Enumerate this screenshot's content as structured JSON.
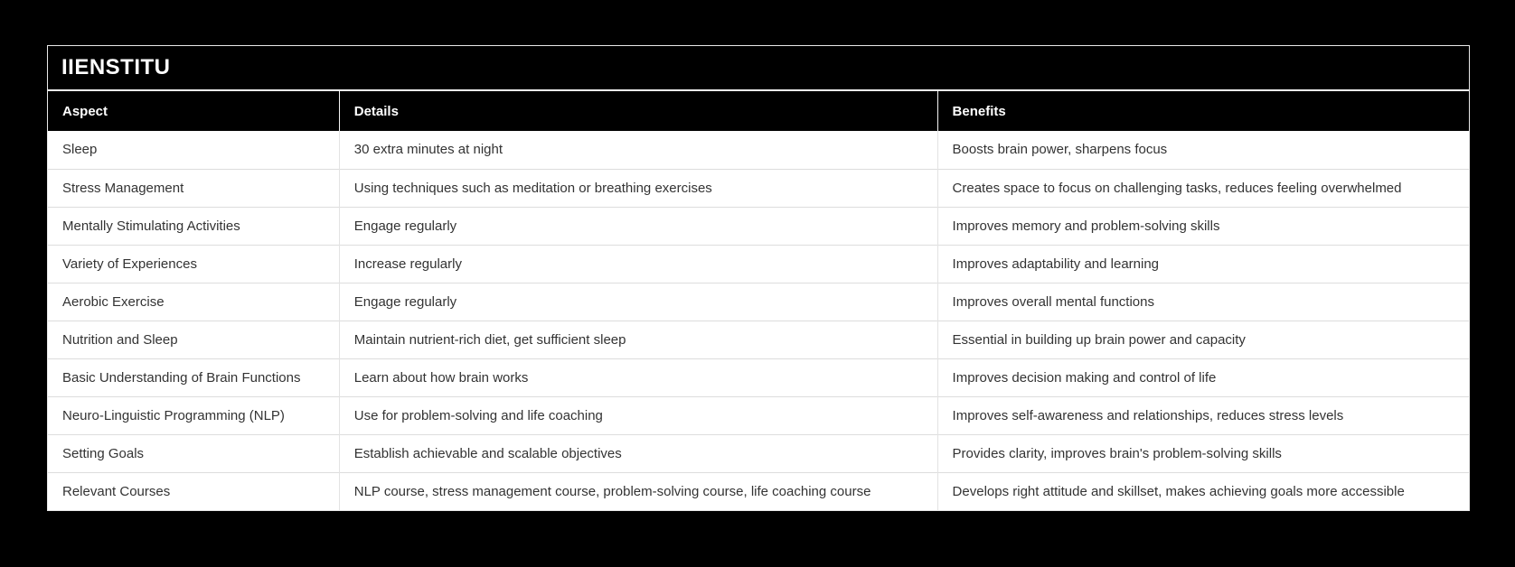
{
  "page": {
    "background_color": "#000000",
    "accent_text_color": "#ffffff",
    "cell_text_color": "#333333",
    "row_background": "#ffffff",
    "divider_color": "#dddddd"
  },
  "table": {
    "title": "IIENSTITU",
    "columns": [
      "Aspect",
      "Details",
      "Benefits"
    ],
    "rows": [
      [
        "Sleep",
        "30 extra minutes at night",
        "Boosts brain power, sharpens focus"
      ],
      [
        "Stress Management",
        "Using techniques such as meditation or breathing exercises",
        "Creates space to focus on challenging tasks, reduces feeling overwhelmed"
      ],
      [
        "Mentally Stimulating Activities",
        "Engage regularly",
        "Improves memory and problem-solving skills"
      ],
      [
        "Variety of Experiences",
        "Increase regularly",
        "Improves adaptability and learning"
      ],
      [
        "Aerobic Exercise",
        "Engage regularly",
        "Improves overall mental functions"
      ],
      [
        "Nutrition and Sleep",
        "Maintain nutrient-rich diet, get sufficient sleep",
        "Essential in building up brain power and capacity"
      ],
      [
        "Basic Understanding of Brain Functions",
        "Learn about how brain works",
        "Improves decision making and control of life"
      ],
      [
        "Neuro-Linguistic Programming (NLP)",
        "Use for problem-solving and life coaching",
        "Improves self-awareness and relationships, reduces stress levels"
      ],
      [
        "Setting Goals",
        "Establish achievable and scalable objectives",
        "Provides clarity, improves brain's problem-solving skills"
      ],
      [
        "Relevant Courses",
        "NLP course, stress management course, problem-solving course, life coaching course",
        "Develops right attitude and skillset, makes achieving goals more accessible"
      ]
    ]
  }
}
